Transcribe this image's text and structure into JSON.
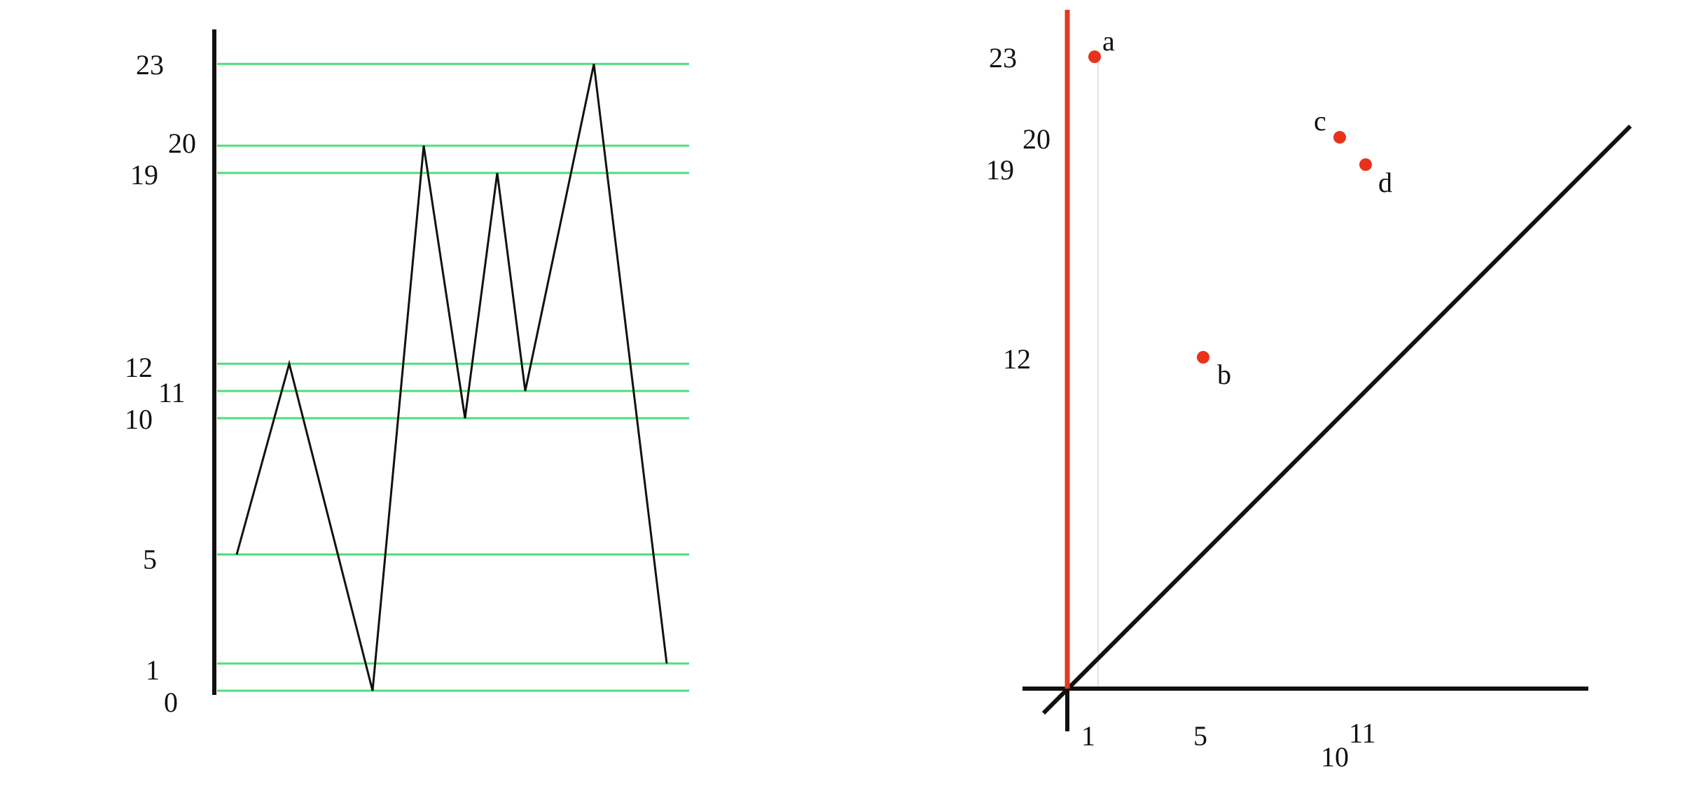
{
  "colors": {
    "background": "#ffffff",
    "level_line": "#4ddf7a",
    "profile": "#111111",
    "axis": "#111111",
    "red_axis": "#e03a26",
    "point": "#e8321e"
  },
  "left_panel": {
    "level_labels": [
      "23",
      "20",
      "19",
      "12",
      "11",
      "10",
      "5",
      "1",
      "0"
    ],
    "levels": [
      23,
      20,
      19,
      12,
      11,
      10,
      5,
      1,
      0
    ],
    "profile_values": [
      5,
      12,
      0,
      20,
      10,
      19,
      11,
      23,
      1
    ]
  },
  "right_panel": {
    "y_labels": [
      "23",
      "20",
      "19",
      "12"
    ],
    "x_labels": [
      "1",
      "5",
      "10",
      "11"
    ],
    "points": [
      {
        "name": "a",
        "birth": 1,
        "death": 23
      },
      {
        "name": "b",
        "birth": 5,
        "death": 12
      },
      {
        "name": "c",
        "birth": 10,
        "death": 20
      },
      {
        "name": "d",
        "birth": 11,
        "death": 19
      }
    ]
  }
}
